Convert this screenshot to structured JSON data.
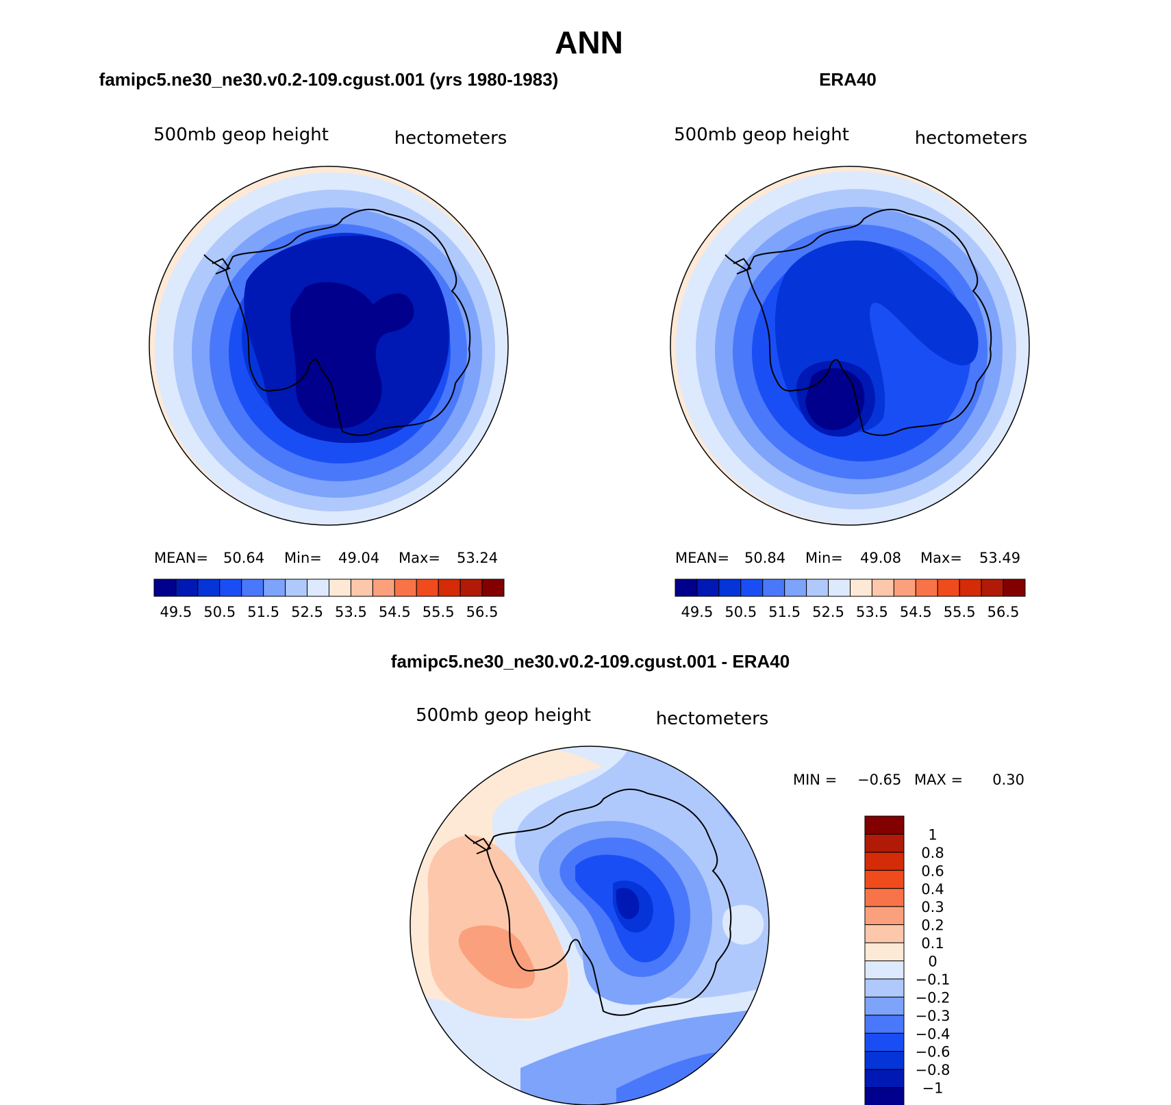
{
  "figure": {
    "title": "ANN",
    "panel_left_title": "famipc5.ne30_ne30.v0.2-109.cgust.001 (yrs 1980-1983)",
    "panel_right_title": "ERA40",
    "panel_bottom_title": "famipc5.ne30_ne30.v0.2-109.cgust.001 - ERA40"
  },
  "chart_data": [
    {
      "type": "heatmap",
      "subtype": "polar-stereographic contour map (Southern Hemisphere)",
      "title": "famipc5.ne30_ne30.v0.2-109.cgust.001 (yrs 1980-1983)",
      "variable": "500mb geop height",
      "units": "hectometers",
      "stats": {
        "mean_label": "MEAN=",
        "mean": "50.64",
        "min_label": "Min=",
        "min": "49.04",
        "max_label": "Max=",
        "max": "53.24"
      },
      "levels": [
        "49.5",
        "50",
        "50.5",
        "51",
        "51.5",
        "52",
        "52.5",
        "53",
        "53.5",
        "54",
        "54.5",
        "55",
        "55.5",
        "56",
        "56.5"
      ],
      "colorbar_labels": [
        "49.5",
        "50.5",
        "51.5",
        "52.5",
        "53.5",
        "54.5",
        "55.5",
        "56.5"
      ],
      "colors": [
        "#00008c",
        "#0018b4",
        "#0535d8",
        "#1a4ef5",
        "#4a78fa",
        "#7da3fb",
        "#b0c9fc",
        "#dde9fd",
        "#fee9d6",
        "#fdc7ab",
        "#fba07c",
        "#f87347",
        "#f04b1c",
        "#d42b08",
        "#b01a06",
        "#820000"
      ],
      "note": "Contours of 500mb geopotential height; lowest over East Antarctica, rising equatorward."
    },
    {
      "type": "heatmap",
      "subtype": "polar-stereographic contour map (Southern Hemisphere)",
      "title": "ERA40",
      "variable": "500mb geop height",
      "units": "hectometers",
      "stats": {
        "mean_label": "MEAN=",
        "mean": "50.84",
        "min_label": "Min=",
        "min": "49.08",
        "max_label": "Max=",
        "max": "53.49"
      },
      "levels": [
        "49.5",
        "50",
        "50.5",
        "51",
        "51.5",
        "52",
        "52.5",
        "53",
        "53.5",
        "54",
        "54.5",
        "55",
        "55.5",
        "56",
        "56.5"
      ],
      "colorbar_labels": [
        "49.5",
        "50.5",
        "51.5",
        "52.5",
        "53.5",
        "54.5",
        "55.5",
        "56.5"
      ],
      "colors": [
        "#00008c",
        "#0018b4",
        "#0535d8",
        "#1a4ef5",
        "#4a78fa",
        "#7da3fb",
        "#b0c9fc",
        "#dde9fd",
        "#fee9d6",
        "#fdc7ab",
        "#fba07c",
        "#f87347",
        "#f04b1c",
        "#d42b08",
        "#b01a06",
        "#820000"
      ],
      "note": "Minimum located near the Ross Sea sector."
    },
    {
      "type": "heatmap",
      "subtype": "polar-stereographic difference map (Southern Hemisphere)",
      "title": "famipc5.ne30_ne30.v0.2-109.cgust.001 - ERA40",
      "variable": "500mb geop height",
      "units": "hectometers",
      "stats": {
        "min_label": "MIN =",
        "min": "−0.65",
        "max_label": "MAX =",
        "max": "0.30"
      },
      "levels": [
        "−1",
        "−0.8",
        "−0.6",
        "−0.4",
        "−0.3",
        "−0.2",
        "−0.1",
        "0",
        "0.1",
        "0.2",
        "0.3",
        "0.4",
        "0.6",
        "0.8",
        "1"
      ],
      "colors": [
        "#00008c",
        "#0018b4",
        "#0535d8",
        "#1a4ef5",
        "#4a78fa",
        "#7da3fb",
        "#b0c9fc",
        "#dde9fd",
        "#fee9d6",
        "#fdc7ab",
        "#fba07c",
        "#f87347",
        "#f04b1c",
        "#d42b08",
        "#b01a06",
        "#820000"
      ],
      "note": "Negative anomaly (~−0.65) over East Antarctica; positive anomaly (~0.3) over the South Pacific west of the Antarctic Peninsula."
    }
  ],
  "colors": {
    "coast": "#000000",
    "border": "#000000"
  }
}
